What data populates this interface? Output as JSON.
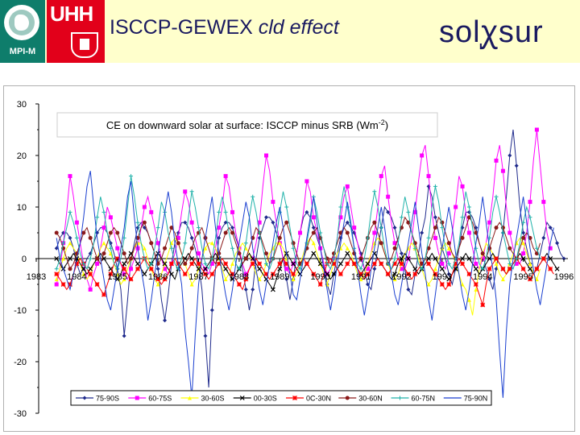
{
  "header": {
    "mpi_logo_text": "MPI-M",
    "uhh_logo_text": "UHH",
    "title_plain": "ISCCP-GEWEX ",
    "title_italic": "cld effect",
    "brand_left": "sol",
    "brand_mid": "ꭕ",
    "brand_right": "sur",
    "background": "#ffffcc",
    "mpi_color": "#0e7d6b",
    "uhh_color": "#e2001a"
  },
  "chart_data": {
    "type": "line",
    "title": "CE on downward solar at surface: ISCCP minus SRB (Wm",
    "title_sup": "-2",
    "title_end": ")",
    "ylim": [
      -30,
      30
    ],
    "yticks": [
      "30",
      "20",
      "10",
      "0",
      "-10",
      "-20",
      "-30"
    ],
    "xlim": [
      1983,
      1996
    ],
    "xticks": [
      "1983",
      "1984",
      "1985",
      "1986",
      "1987",
      "1988",
      "1989",
      "1990",
      "1991",
      "1992",
      "1993",
      "1994",
      "1995",
      "1996"
    ],
    "legend_position": "bottom-right",
    "grid": false,
    "start_year": 1983.5,
    "months": 150,
    "series": [
      {
        "name": "75-90S",
        "color": "#1f2a8c",
        "marker": "diamond",
        "values": [
          2,
          4,
          5,
          5,
          4,
          2,
          -1,
          -3,
          -2,
          0,
          1,
          3,
          5,
          6,
          6,
          5,
          3,
          1,
          -2,
          -6,
          -15,
          -8,
          0,
          3,
          6,
          7,
          6,
          5,
          3,
          1,
          -2,
          -8,
          -12,
          -7,
          -1,
          3,
          5,
          7,
          7,
          6,
          4,
          2,
          -1,
          -6,
          -15,
          -25,
          -10,
          -2,
          4,
          6,
          7,
          7,
          6,
          4,
          2,
          -2,
          -6,
          -10,
          -6,
          0,
          4,
          6,
          8,
          8,
          7,
          5,
          3,
          0,
          -4,
          -8,
          -4,
          1,
          5,
          8,
          9,
          8,
          6,
          4,
          2,
          -1,
          -5,
          -7,
          -3,
          1,
          4,
          6,
          7,
          6,
          5,
          3,
          1,
          -2,
          -5,
          -6,
          -2,
          2,
          6,
          10,
          9,
          8,
          6,
          3,
          1,
          -2,
          -6,
          -7,
          -3,
          1,
          5,
          8,
          14,
          12,
          8,
          5,
          2,
          0,
          -3,
          -5,
          -2,
          2,
          6,
          9,
          9,
          8,
          6,
          3,
          1,
          -2,
          -4,
          -6,
          -2,
          2,
          5,
          12,
          20,
          25,
          18,
          10,
          5,
          2,
          -1,
          -3,
          -2,
          1,
          4,
          7,
          6,
          5,
          3,
          1,
          0
        ]
      },
      {
        "name": "60-75S",
        "color": "#ff00ff",
        "marker": "square",
        "values": [
          -5,
          -2,
          3,
          9,
          16,
          12,
          7,
          3,
          -1,
          -4,
          -6,
          -3,
          -1,
          2,
          6,
          10,
          8,
          5,
          2,
          -1,
          -3,
          -4,
          -2,
          0,
          2,
          6,
          10,
          12,
          9,
          6,
          3,
          0,
          -2,
          -3,
          -1,
          1,
          4,
          9,
          13,
          11,
          7,
          4,
          1,
          -1,
          -2,
          -3,
          -1,
          2,
          6,
          10,
          16,
          14,
          9,
          5,
          2,
          -1,
          -3,
          -2,
          0,
          3,
          7,
          14,
          20,
          17,
          11,
          7,
          3,
          0,
          -2,
          -3,
          -1,
          1,
          5,
          9,
          15,
          13,
          8,
          5,
          2,
          -1,
          -3,
          -2,
          0,
          4,
          8,
          12,
          14,
          10,
          6,
          3,
          0,
          -2,
          -2,
          1,
          5,
          10,
          16,
          18,
          12,
          7,
          3,
          0,
          -2,
          -2,
          0,
          4,
          9,
          15,
          20,
          22,
          16,
          9,
          4,
          1,
          -1,
          -2,
          1,
          5,
          10,
          16,
          14,
          9,
          5,
          2,
          -1,
          -2,
          0,
          3,
          7,
          12,
          19,
          22,
          17,
          10,
          5,
          2,
          -1,
          -1,
          1,
          5,
          11,
          19,
          25,
          18,
          11,
          5,
          2
        ]
      },
      {
        "name": "30-60S",
        "color": "#ffff00",
        "marker": "triangle",
        "values": [
          -4,
          -2,
          0,
          2,
          3,
          2,
          1,
          -1,
          -3,
          -4,
          -3,
          -1,
          0,
          2,
          3,
          2,
          1,
          -1,
          -3,
          -5,
          -4,
          -2,
          0,
          2,
          3,
          3,
          2,
          0,
          -2,
          -4,
          -5,
          -3,
          -1,
          1,
          3,
          4,
          3,
          1,
          -1,
          -3,
          -5,
          -4,
          -2,
          0,
          2,
          3,
          3,
          2,
          0,
          -2,
          -4,
          -3,
          -1,
          1,
          2,
          3,
          2,
          1,
          -1,
          -3,
          -4,
          -3,
          -1,
          1,
          2,
          3,
          3,
          2,
          0,
          -2,
          -4,
          -3,
          -1,
          1,
          3,
          4,
          3,
          1,
          -1,
          -3,
          -5,
          -3,
          -1,
          1,
          2,
          3,
          2,
          1,
          -1,
          -3,
          -4,
          -3,
          -1,
          1,
          3,
          4,
          3,
          1,
          -1,
          -3,
          -4,
          -3,
          -1,
          1,
          2,
          3,
          2,
          0,
          -2,
          -4,
          -5,
          -4,
          -2,
          0,
          2,
          3,
          2,
          1,
          -1,
          -3,
          -5,
          -6,
          -8,
          -11,
          -6,
          -2,
          1,
          3,
          2,
          1,
          -1,
          -3,
          -4,
          -3,
          -1,
          1,
          3,
          4,
          3,
          1,
          -1,
          -3,
          -4,
          -2
        ]
      },
      {
        "name": "00-30S",
        "color": "#000000",
        "marker": "x",
        "values": [
          0,
          -1,
          -2,
          -1,
          0,
          1,
          0,
          -1,
          -2,
          -3,
          -2,
          -1,
          0,
          1,
          0,
          -1,
          -2,
          -3,
          -4,
          -3,
          -1,
          0,
          1,
          0,
          -1,
          -2,
          -3,
          -2,
          -1,
          0,
          1,
          0,
          -1,
          -2,
          -3,
          -4,
          -2,
          -1,
          0,
          1,
          0,
          -1,
          -2,
          -3,
          -2,
          -1,
          0,
          1,
          0,
          -1,
          -2,
          -3,
          -4,
          -3,
          -2,
          -1,
          0,
          1,
          0,
          -1,
          -2,
          -3,
          -4,
          -5,
          -6,
          -4,
          -2,
          0,
          1,
          0,
          -1,
          -2,
          -3,
          -2,
          -1,
          0,
          1,
          0,
          -1,
          -2,
          -3,
          -4,
          -3,
          -2,
          -1,
          0,
          1,
          0,
          -1,
          -2,
          -3,
          -2,
          -1,
          0,
          1,
          0,
          -1,
          -2,
          -3,
          -4,
          -3,
          -1,
          0,
          1,
          0,
          -1,
          -2,
          -3,
          -2,
          -1,
          0,
          1,
          0,
          -1,
          -2,
          -3,
          -4,
          -3,
          -2,
          -1,
          0,
          1,
          0,
          -1,
          -2,
          -3,
          -2,
          -1,
          0,
          1,
          0,
          -1,
          -2,
          -3,
          -2,
          -1,
          0,
          1,
          0,
          -1,
          -2,
          -3,
          -2,
          -1,
          0,
          1,
          0,
          -1,
          -2
        ]
      },
      {
        "name": "0C-30N",
        "color": "#ff0000",
        "marker": "star",
        "values": [
          -3,
          -4,
          -5,
          -6,
          -5,
          -3,
          -1,
          0,
          -1,
          -2,
          -3,
          -4,
          -5,
          -6,
          -7,
          -5,
          -3,
          -1,
          0,
          -1,
          -2,
          -3,
          -4,
          -3,
          -2,
          -1,
          0,
          -1,
          -2,
          -3,
          -4,
          -5,
          -4,
          -3,
          -1,
          0,
          -1,
          -2,
          -3,
          -2,
          -1,
          0,
          -1,
          -2,
          -3,
          -4,
          -3,
          -2,
          -1,
          0,
          -1,
          -2,
          -3,
          -4,
          -5,
          -6,
          -4,
          -2,
          -1,
          0,
          -1,
          -2,
          -3,
          -4,
          -3,
          -2,
          -1,
          0,
          -1,
          -2,
          -3,
          -2,
          -1,
          0,
          -1,
          -2,
          -3,
          -4,
          -5,
          -3,
          -1,
          0,
          -1,
          -2,
          -3,
          -2,
          -1,
          0,
          -1,
          -2,
          -3,
          -4,
          -3,
          -2,
          -1,
          0,
          -1,
          -2,
          -3,
          -2,
          -1,
          0,
          -1,
          -2,
          -3,
          -4,
          -3,
          -2,
          -1,
          0,
          -1,
          -2,
          -3,
          -4,
          -5,
          -6,
          -5,
          -3,
          -1,
          0,
          -1,
          -2,
          -3,
          -4,
          -5,
          -7,
          -9,
          -5,
          -2,
          -1,
          0,
          -1,
          -2,
          -3,
          -2,
          -1,
          0,
          -1,
          -2,
          -3,
          -4,
          -3,
          -2,
          -1,
          0,
          -1,
          -2,
          -3
        ]
      },
      {
        "name": "30-60N",
        "color": "#8b1a1a",
        "marker": "circle",
        "values": [
          5,
          4,
          2,
          0,
          -2,
          -1,
          1,
          3,
          5,
          6,
          4,
          2,
          0,
          -1,
          1,
          3,
          5,
          6,
          5,
          3,
          1,
          -1,
          0,
          2,
          4,
          6,
          7,
          5,
          3,
          1,
          -1,
          0,
          2,
          4,
          6,
          5,
          3,
          1,
          -1,
          0,
          2,
          4,
          5,
          6,
          4,
          2,
          0,
          -1,
          1,
          3,
          5,
          6,
          5,
          3,
          1,
          -1,
          0,
          2,
          4,
          6,
          5,
          3,
          1,
          -1,
          0,
          2,
          4,
          6,
          7,
          5,
          3,
          1,
          -1,
          0,
          2,
          4,
          5,
          6,
          4,
          2,
          0,
          -1,
          1,
          3,
          5,
          6,
          5,
          3,
          1,
          -1,
          0,
          2,
          4,
          6,
          7,
          5,
          3,
          1,
          -1,
          0,
          2,
          4,
          6,
          8,
          7,
          5,
          3,
          1,
          -1,
          0,
          2,
          4,
          6,
          8,
          7,
          5,
          3,
          1,
          0,
          2,
          4,
          6,
          8,
          7,
          5,
          3,
          1,
          0,
          2,
          4,
          6,
          7,
          6,
          4,
          2,
          1,
          0,
          2,
          4,
          5,
          4,
          2,
          1,
          3
        ]
      },
      {
        "name": "60-75N",
        "color": "#20b2aa",
        "marker": "plus",
        "values": [
          -2,
          0,
          3,
          6,
          9,
          7,
          4,
          1,
          -1,
          -2,
          0,
          3,
          8,
          12,
          9,
          5,
          2,
          -1,
          -2,
          0,
          4,
          10,
          16,
          12,
          7,
          3,
          0,
          -2,
          -1,
          2,
          6,
          11,
          9,
          5,
          2,
          -1,
          -2,
          0,
          3,
          8,
          13,
          10,
          6,
          2,
          -1,
          -2,
          0,
          4,
          9,
          12,
          9,
          5,
          2,
          -1,
          -2,
          0,
          3,
          8,
          12,
          9,
          5,
          2,
          -1,
          -2,
          0,
          4,
          9,
          13,
          10,
          6,
          2,
          -1,
          -2,
          0,
          3,
          7,
          12,
          9,
          5,
          2,
          -1,
          -2,
          0,
          4,
          10,
          14,
          10,
          6,
          2,
          -1,
          -2,
          0,
          4,
          9,
          13,
          10,
          6,
          2,
          -1,
          -2,
          0,
          3,
          8,
          12,
          9,
          5,
          2,
          -1,
          -2,
          0,
          4,
          10,
          14,
          11,
          6,
          2,
          -1,
          -2,
          0,
          3,
          8,
          13,
          10,
          6,
          2,
          -1,
          -2,
          0,
          4,
          9,
          12,
          9,
          5,
          2,
          -1,
          -2,
          0,
          3,
          7,
          10,
          8,
          5,
          2,
          0
        ]
      },
      {
        "name": "75-90N",
        "color": "#1a3fd0",
        "marker": "line",
        "values": [
          4,
          0,
          -2,
          -4,
          -6,
          -3,
          0,
          3,
          8,
          14,
          17,
          10,
          4,
          0,
          -4,
          -8,
          -10,
          -6,
          -2,
          2,
          6,
          12,
          15,
          8,
          2,
          -2,
          -6,
          -12,
          -8,
          -3,
          1,
          5,
          9,
          13,
          9,
          3,
          -1,
          -5,
          -14,
          -20,
          -27,
          -15,
          -5,
          0,
          4,
          8,
          12,
          6,
          1,
          -3,
          -7,
          -10,
          -6,
          -1,
          3,
          7,
          11,
          8,
          2,
          -2,
          -6,
          -9,
          -5,
          -1,
          3,
          7,
          10,
          6,
          1,
          -3,
          -7,
          -8,
          -4,
          0,
          4,
          8,
          12,
          7,
          2,
          -2,
          -6,
          -10,
          -6,
          -1,
          3,
          7,
          11,
          7,
          2,
          -2,
          -7,
          -11,
          -7,
          -2,
          2,
          6,
          10,
          6,
          1,
          -3,
          -7,
          -9,
          -5,
          -1,
          3,
          7,
          11,
          6,
          1,
          -3,
          -8,
          -12,
          -7,
          -2,
          2,
          6,
          10,
          6,
          1,
          -3,
          -7,
          -10,
          -6,
          -1,
          3,
          7,
          12,
          7,
          2,
          -2,
          -8,
          -18,
          -27,
          -14,
          -5,
          0,
          4,
          8,
          12,
          7,
          2,
          -2,
          -6,
          -9,
          -5,
          -1,
          3,
          6
        ]
      }
    ]
  }
}
